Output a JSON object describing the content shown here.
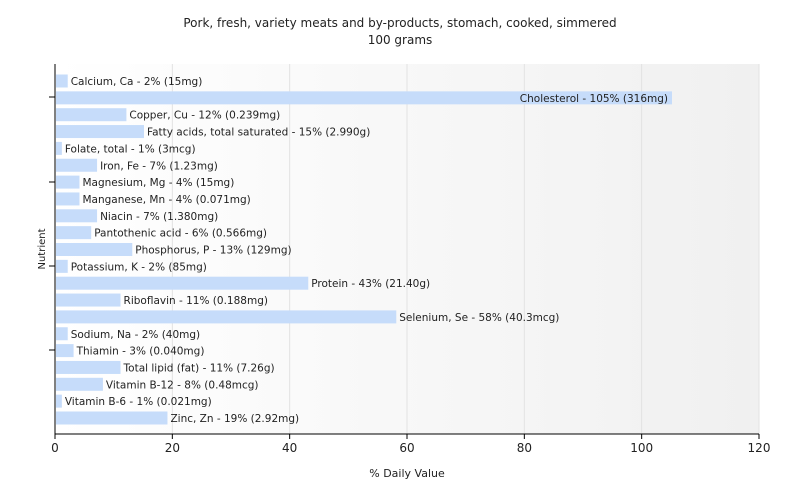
{
  "chart_data": {
    "type": "bar",
    "orientation": "horizontal",
    "title": "Pork, fresh, variety meats and by-products, stomach, cooked, simmered",
    "subtitle": "100 grams",
    "xlabel": "% Daily Value",
    "ylabel": "Nutrient",
    "xlim": [
      0,
      120
    ],
    "xticks": [
      0,
      20,
      40,
      60,
      80,
      100,
      120
    ],
    "grid": true,
    "bar_color": "#c6dcfa",
    "categories": [
      "Calcium, Ca",
      "Cholesterol",
      "Copper, Cu",
      "Fatty acids, total saturated",
      "Folate, total",
      "Iron, Fe",
      "Magnesium, Mg",
      "Manganese, Mn",
      "Niacin",
      "Pantothenic acid",
      "Phosphorus, P",
      "Potassium, K",
      "Protein",
      "Riboflavin",
      "Selenium, Se",
      "Sodium, Na",
      "Thiamin",
      "Total lipid (fat)",
      "Vitamin B-12",
      "Vitamin B-6",
      "Zinc, Zn"
    ],
    "values": [
      2,
      105,
      12,
      15,
      1,
      7,
      4,
      4,
      7,
      6,
      13,
      2,
      43,
      11,
      58,
      2,
      3,
      11,
      8,
      1,
      19
    ],
    "labels": [
      "Calcium, Ca - 2% (15mg)",
      "Cholesterol - 105% (316mg)",
      "Copper, Cu - 12% (0.239mg)",
      "Fatty acids, total saturated - 15% (2.990g)",
      "Folate, total - 1% (3mcg)",
      "Iron, Fe - 7% (1.23mg)",
      "Magnesium, Mg - 4% (15mg)",
      "Manganese, Mn - 4% (0.071mg)",
      "Niacin - 7% (1.380mg)",
      "Pantothenic acid - 6% (0.566mg)",
      "Phosphorus, P - 13% (129mg)",
      "Potassium, K - 2% (85mg)",
      "Protein - 43% (21.40g)",
      "Riboflavin - 11% (0.188mg)",
      "Selenium, Se - 58% (40.3mcg)",
      "Sodium, Na - 2% (40mg)",
      "Thiamin - 3% (0.040mg)",
      "Total lipid (fat) - 11% (7.26g)",
      "Vitamin B-12 - 8% (0.48mcg)",
      "Vitamin B-6 - 1% (0.021mg)",
      "Zinc, Zn - 19% (2.92mg)"
    ]
  }
}
